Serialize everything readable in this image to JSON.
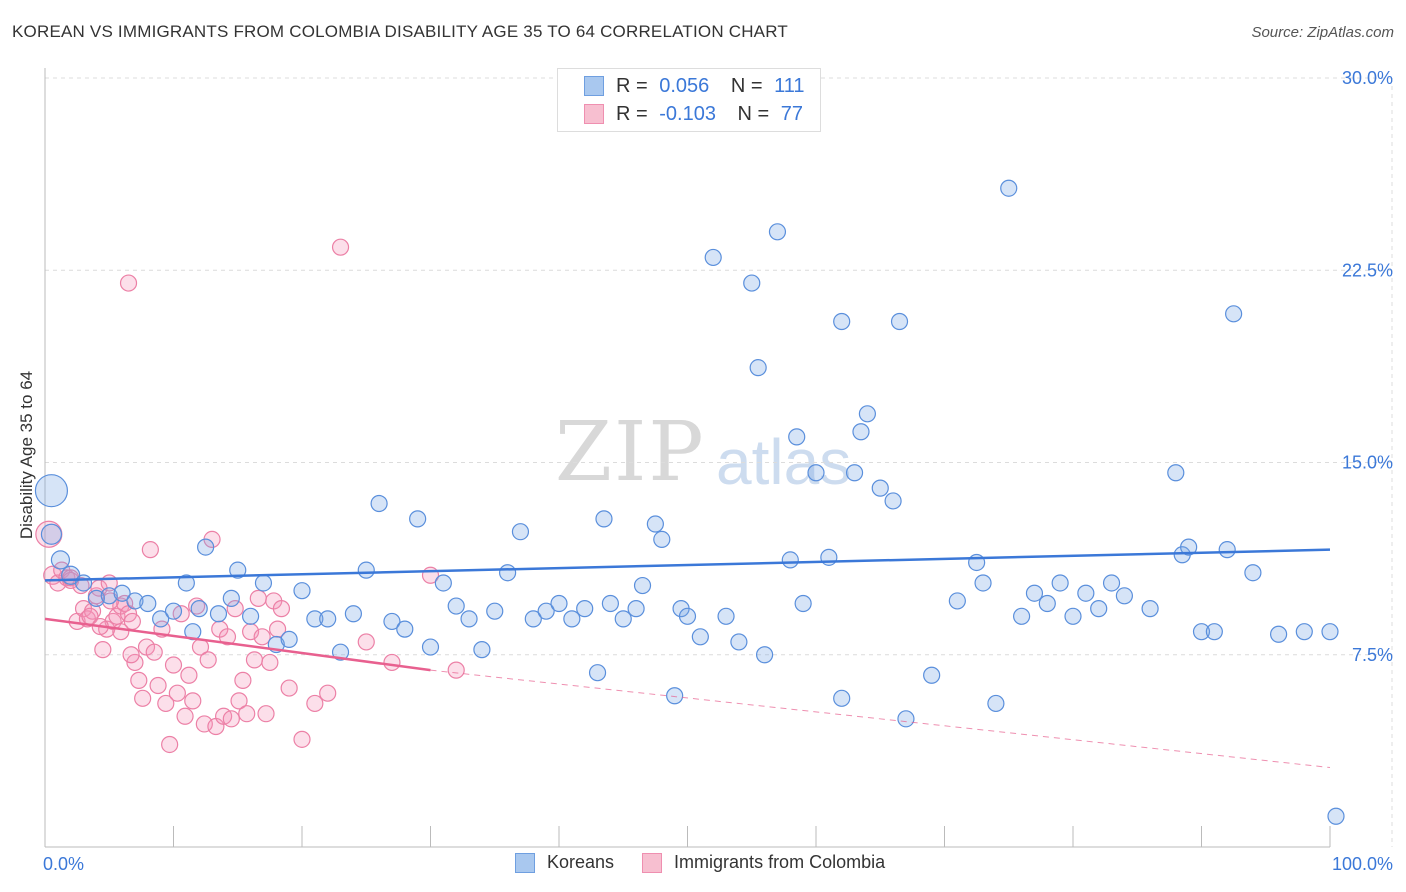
{
  "title": "KOREAN VS IMMIGRANTS FROM COLOMBIA DISABILITY AGE 35 TO 64 CORRELATION CHART",
  "source": "Source: ZipAtlas.com",
  "watermark": {
    "part1": "ZIP",
    "part2": "atlas"
  },
  "legend_top": [
    {
      "r_label": "R =",
      "r_value": "0.056",
      "n_label": "N =",
      "n_value": "111",
      "color": "#a9c8ef",
      "border": "#6f9fe0"
    },
    {
      "r_label": "R =",
      "r_value": "-0.103",
      "n_label": "N =",
      "n_value": "77",
      "color": "#f7bfd0",
      "border": "#ef8fb0"
    }
  ],
  "legend_bottom": [
    {
      "label": "Koreans",
      "color": "#a9c8ef",
      "border": "#6f9fe0"
    },
    {
      "label": "Immigrants from Colombia",
      "color": "#f7bfd0",
      "border": "#ef8fb0"
    }
  ],
  "colors": {
    "blue": "#3b78d8",
    "blue_fill": "rgba(120,165,230,0.30)",
    "pink": "#e8608f",
    "pink_fill": "rgba(245,150,185,0.30)",
    "axis_text": "#3b78d8",
    "grid": "#dcdcdc"
  },
  "chart_data": {
    "type": "scatter",
    "xlabel": "",
    "ylabel": "Disability Age 35 to 64",
    "xlim": [
      0,
      100
    ],
    "ylim": [
      0,
      30
    ],
    "x_tick_labels": [
      "0.0%",
      "100.0%"
    ],
    "y_ticks": [
      7.5,
      15.0,
      22.5,
      30.0
    ],
    "y_tick_labels": [
      "7.5%",
      "15.0%",
      "22.5%",
      "30.0%"
    ],
    "grid": true,
    "legend": "top-center",
    "series": [
      {
        "name": "Koreans",
        "color": "#3b78d8",
        "trend": {
          "x": [
            0,
            100
          ],
          "y": [
            10.4,
            11.6
          ],
          "style": "solid"
        },
        "points": [
          [
            0.5,
            13.9,
            16
          ],
          [
            0.5,
            12.2,
            10
          ],
          [
            1.2,
            11.2,
            9
          ],
          [
            2.0,
            10.6,
            9
          ],
          [
            3.0,
            10.3,
            8
          ],
          [
            4.0,
            9.7,
            8
          ],
          [
            5.0,
            9.8,
            8
          ],
          [
            6.0,
            9.9,
            8
          ],
          [
            7.0,
            9.6,
            8
          ],
          [
            8.0,
            9.5,
            8
          ],
          [
            9.0,
            8.9,
            8
          ],
          [
            10.0,
            9.2,
            8
          ],
          [
            11.0,
            10.3,
            8
          ],
          [
            11.5,
            8.4,
            8
          ],
          [
            12.0,
            9.3,
            8
          ],
          [
            12.5,
            11.7,
            8
          ],
          [
            13.5,
            9.1,
            8
          ],
          [
            14.5,
            9.7,
            8
          ],
          [
            15.0,
            10.8,
            8
          ],
          [
            16.0,
            9.0,
            8
          ],
          [
            17.0,
            10.3,
            8
          ],
          [
            18.0,
            7.9,
            8
          ],
          [
            19.0,
            8.1,
            8
          ],
          [
            20.0,
            10.0,
            8
          ],
          [
            21.0,
            8.9,
            8
          ],
          [
            22.0,
            8.9,
            8
          ],
          [
            23.0,
            7.6,
            8
          ],
          [
            24.0,
            9.1,
            8
          ],
          [
            25.0,
            10.8,
            8
          ],
          [
            26.0,
            13.4,
            8
          ],
          [
            27.0,
            8.8,
            8
          ],
          [
            28.0,
            8.5,
            8
          ],
          [
            29.0,
            12.8,
            8
          ],
          [
            30.0,
            7.8,
            8
          ],
          [
            31.0,
            10.3,
            8
          ],
          [
            32.0,
            9.4,
            8
          ],
          [
            33.0,
            8.9,
            8
          ],
          [
            34.0,
            7.7,
            8
          ],
          [
            35.0,
            9.2,
            8
          ],
          [
            36.0,
            10.7,
            8
          ],
          [
            37.0,
            12.3,
            8
          ],
          [
            38.0,
            8.9,
            8
          ],
          [
            39.0,
            9.2,
            8
          ],
          [
            40.0,
            9.5,
            8
          ],
          [
            41.0,
            8.9,
            8
          ],
          [
            42.0,
            9.3,
            8
          ],
          [
            43.0,
            6.8,
            8
          ],
          [
            43.5,
            12.8,
            8
          ],
          [
            44.0,
            9.5,
            8
          ],
          [
            45.0,
            8.9,
            8
          ],
          [
            46.0,
            9.3,
            8
          ],
          [
            46.5,
            10.2,
            8
          ],
          [
            47.5,
            12.6,
            8
          ],
          [
            48.0,
            12.0,
            8
          ],
          [
            49.0,
            5.9,
            8
          ],
          [
            49.5,
            9.3,
            8
          ],
          [
            50.0,
            9.0,
            8
          ],
          [
            51.0,
            8.2,
            8
          ],
          [
            52.0,
            23.0,
            8
          ],
          [
            53.0,
            9.0,
            8
          ],
          [
            54.0,
            8.0,
            8
          ],
          [
            55.0,
            22.0,
            8
          ],
          [
            55.5,
            18.7,
            8
          ],
          [
            56.0,
            7.5,
            8
          ],
          [
            57.0,
            24.0,
            8
          ],
          [
            58.0,
            11.2,
            8
          ],
          [
            58.5,
            16.0,
            8
          ],
          [
            59.0,
            9.5,
            8
          ],
          [
            60.0,
            14.6,
            8
          ],
          [
            61.0,
            11.3,
            8
          ],
          [
            62.0,
            20.5,
            8
          ],
          [
            62.0,
            5.8,
            8
          ],
          [
            63.0,
            14.6,
            8
          ],
          [
            63.5,
            16.2,
            8
          ],
          [
            64.0,
            16.9,
            8
          ],
          [
            65.0,
            14.0,
            8
          ],
          [
            66.0,
            13.5,
            8
          ],
          [
            66.5,
            20.5,
            8
          ],
          [
            67.0,
            5.0,
            8
          ],
          [
            69.0,
            6.7,
            8
          ],
          [
            71.0,
            9.6,
            8
          ],
          [
            72.5,
            11.1,
            8
          ],
          [
            73.0,
            10.3,
            8
          ],
          [
            74.0,
            5.6,
            8
          ],
          [
            75.0,
            25.7,
            8
          ],
          [
            76.0,
            9.0,
            8
          ],
          [
            77.0,
            9.9,
            8
          ],
          [
            78.0,
            9.5,
            8
          ],
          [
            79.0,
            10.3,
            8
          ],
          [
            80.0,
            9.0,
            8
          ],
          [
            81.0,
            9.9,
            8
          ],
          [
            82.0,
            9.3,
            8
          ],
          [
            83.0,
            10.3,
            8
          ],
          [
            84.0,
            9.8,
            8
          ],
          [
            86.0,
            9.3,
            8
          ],
          [
            88.0,
            14.6,
            8
          ],
          [
            88.5,
            11.4,
            8
          ],
          [
            89.0,
            11.7,
            8
          ],
          [
            90.0,
            8.4,
            8
          ],
          [
            91.0,
            8.4,
            8
          ],
          [
            92.0,
            11.6,
            8
          ],
          [
            92.5,
            20.8,
            8
          ],
          [
            94.0,
            10.7,
            8
          ],
          [
            96.0,
            8.3,
            8
          ],
          [
            98.0,
            8.4,
            8
          ],
          [
            100.0,
            8.4,
            8
          ],
          [
            105.0,
            1.2,
            8
          ]
        ]
      },
      {
        "name": "Immigrants from Colombia",
        "color": "#e8608f",
        "trend": {
          "x": [
            0,
            30
          ],
          "y": [
            8.9,
            6.9
          ],
          "style": "solid",
          "extension_x": [
            100
          ],
          "extension_y": [
            3.1
          ]
        },
        "points": [
          [
            0.3,
            12.2,
            13
          ],
          [
            0.6,
            10.6,
            9
          ],
          [
            1.0,
            10.3,
            8
          ],
          [
            1.3,
            10.8,
            8
          ],
          [
            1.7,
            10.5,
            8
          ],
          [
            2.0,
            10.4,
            8
          ],
          [
            2.5,
            8.8,
            8
          ],
          [
            3.0,
            9.3,
            8
          ],
          [
            3.3,
            8.9,
            8
          ],
          [
            3.7,
            9.2,
            8
          ],
          [
            4.0,
            9.8,
            8
          ],
          [
            4.2,
            10.1,
            8
          ],
          [
            4.5,
            7.7,
            8
          ],
          [
            4.8,
            8.5,
            8
          ],
          [
            5.0,
            10.3,
            8
          ],
          [
            5.3,
            8.8,
            8
          ],
          [
            5.6,
            9.0,
            8
          ],
          [
            5.9,
            9.4,
            8
          ],
          [
            6.2,
            9.5,
            8
          ],
          [
            6.5,
            9.1,
            8
          ],
          [
            6.8,
            8.8,
            8
          ],
          [
            7.0,
            7.2,
            8
          ],
          [
            7.3,
            6.5,
            8
          ],
          [
            7.6,
            5.8,
            8
          ],
          [
            7.9,
            7.8,
            8
          ],
          [
            8.2,
            11.6,
            8
          ],
          [
            8.5,
            7.6,
            8
          ],
          [
            8.8,
            6.3,
            8
          ],
          [
            9.1,
            8.5,
            8
          ],
          [
            9.4,
            5.6,
            8
          ],
          [
            9.7,
            4.0,
            8
          ],
          [
            10.0,
            7.1,
            8
          ],
          [
            10.3,
            6.0,
            8
          ],
          [
            10.6,
            9.1,
            8
          ],
          [
            10.9,
            5.1,
            8
          ],
          [
            11.2,
            6.7,
            8
          ],
          [
            11.5,
            5.7,
            8
          ],
          [
            11.8,
            9.4,
            8
          ],
          [
            12.1,
            7.8,
            8
          ],
          [
            12.4,
            4.8,
            8
          ],
          [
            12.7,
            7.3,
            8
          ],
          [
            13.0,
            12.0,
            8
          ],
          [
            13.3,
            4.7,
            8
          ],
          [
            13.6,
            8.5,
            8
          ],
          [
            13.9,
            5.1,
            8
          ],
          [
            14.2,
            8.2,
            8
          ],
          [
            14.5,
            5.0,
            8
          ],
          [
            14.8,
            9.3,
            8
          ],
          [
            15.1,
            5.7,
            8
          ],
          [
            15.4,
            6.5,
            8
          ],
          [
            15.7,
            5.2,
            8
          ],
          [
            16.0,
            8.4,
            8
          ],
          [
            16.3,
            7.3,
            8
          ],
          [
            16.6,
            9.7,
            8
          ],
          [
            16.9,
            8.2,
            8
          ],
          [
            17.2,
            5.2,
            8
          ],
          [
            17.5,
            7.2,
            8
          ],
          [
            17.8,
            9.6,
            8
          ],
          [
            18.1,
            8.5,
            8
          ],
          [
            18.4,
            9.3,
            8
          ],
          [
            19.0,
            6.2,
            8
          ],
          [
            20.0,
            4.2,
            8
          ],
          [
            21.0,
            5.6,
            8
          ],
          [
            22.0,
            6.0,
            8
          ],
          [
            23.0,
            23.4,
            8
          ],
          [
            25.0,
            8.0,
            8
          ],
          [
            27.0,
            7.2,
            8
          ],
          [
            30.0,
            10.6,
            8
          ],
          [
            32.0,
            6.9,
            8
          ],
          [
            6.5,
            22.0,
            8
          ],
          [
            2.0,
            10.5,
            8
          ],
          [
            2.8,
            10.2,
            8
          ],
          [
            3.5,
            9.0,
            8
          ],
          [
            4.3,
            8.6,
            8
          ],
          [
            5.1,
            9.6,
            8
          ],
          [
            5.9,
            8.4,
            8
          ],
          [
            6.7,
            7.5,
            8
          ]
        ]
      }
    ]
  }
}
